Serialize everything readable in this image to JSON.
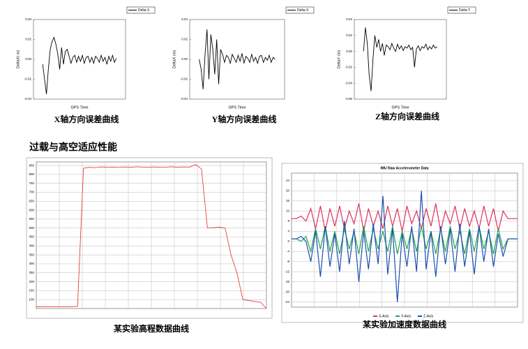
{
  "heading": "过载与高空适应性能",
  "chart_data": [
    {
      "type": "line",
      "caption": "X轴方向误差曲线",
      "x_label": "GPS Time",
      "y_label": "DeltaX( m)",
      "legend_loc": "upper right",
      "grid": false,
      "ylim": [
        -0.04,
        0.04
      ],
      "yticks": [
        -0.04,
        -0.02,
        {
          "value": 0,
          "label": "0.00"
        },
        0.02,
        0.04
      ],
      "series": [
        {
          "name": "Delta X",
          "color": "#000000",
          "values": [
            -0.005,
            -0.02,
            -0.035,
            -0.01,
            0.01,
            0.018,
            0.022,
            0.015,
            0.005,
            -0.01,
            0.012,
            -0.005,
            0.008,
            0.01,
            0.003,
            -0.004,
            0.002,
            0.004,
            -0.003,
            0.003,
            -0.002,
            0.004,
            -0.004,
            0.002,
            0.003,
            -0.003,
            0.002,
            -0.004,
            0.003,
            0.001,
            -0.003,
            0.004,
            -0.002,
            0.002,
            -0.005,
            0.003,
            -0.002,
            0.004,
            -0.003,
            0.001
          ]
        }
      ]
    },
    {
      "type": "line",
      "caption": "Y轴方向误差曲线",
      "x_label": "GPS Time",
      "y_label": "DeltaX (m)",
      "legend_loc": "upper right",
      "grid": false,
      "ylim": [
        -0.04,
        0.04
      ],
      "yticks": [
        -0.04,
        -0.02,
        {
          "value": 0,
          "label": "0.00"
        },
        0.02,
        0.04
      ],
      "series": [
        {
          "name": "Delta X",
          "color": "#000000",
          "values": [
            0.0,
            -0.01,
            -0.03,
            0.005,
            0.03,
            -0.02,
            0.025,
            0.01,
            -0.015,
            0.02,
            -0.025,
            0.01,
            0.005,
            -0.003,
            0.004,
            0.002,
            -0.004,
            0.005,
            0.001,
            -0.003,
            0.004,
            -0.002,
            0.006,
            -0.004,
            0.003,
            0.001,
            -0.003,
            0.005,
            -0.002,
            0.002,
            -0.004,
            0.003,
            0.004,
            -0.003,
            0.002,
            -0.001,
            0.004,
            -0.003,
            0.002,
            0.0
          ]
        }
      ]
    },
    {
      "type": "line",
      "caption": "Z轴方向误差曲线",
      "x_label": "GPS Time",
      "y_label": "DeltaY (m)",
      "legend_loc": "upper right",
      "grid": false,
      "ylim": [
        -0.06,
        0.04
      ],
      "yticks": [
        -0.06,
        -0.04,
        -0.02,
        {
          "value": 0,
          "label": "0.00"
        },
        0.02,
        0.04
      ],
      "series": [
        {
          "name": "Delta Y",
          "color": "#000000",
          "values": [
            0.0,
            0.03,
            0.01,
            -0.03,
            -0.05,
            -0.01,
            0.02,
            0.005,
            0.015,
            0.0,
            0.01,
            -0.005,
            0.008,
            0.006,
            0.002,
            0.01,
            0.004,
            0.0,
            0.009,
            0.003,
            0.007,
            0.001,
            0.006,
            0.004,
            0.008,
            0.002,
            0.005,
            -0.02,
            0.003,
            0.007,
            0.001,
            0.006,
            0.004,
            0.009,
            0.002,
            0.006,
            0.003,
            0.008,
            0.004,
            0.006
          ]
        }
      ]
    },
    {
      "type": "line",
      "caption": "某实验高程数据曲线",
      "legend_loc": "none",
      "grid": true,
      "ylim": [
        50,
        870
      ],
      "yticks": [
        100,
        150,
        200,
        250,
        300,
        350,
        400,
        450,
        500,
        550,
        600,
        650,
        700,
        750,
        800,
        850
      ],
      "series": [
        {
          "name": null,
          "color": "#e8403a",
          "values": [
            60,
            60,
            60,
            60,
            60,
            60,
            60,
            62,
            835,
            840,
            838,
            842,
            840,
            841,
            839,
            842,
            840,
            843,
            841,
            840,
            842,
            840,
            841,
            843,
            840,
            842,
            841,
            855,
            830,
            500,
            502,
            505,
            500,
            350,
            250,
            100,
            95,
            90,
            85,
            50
          ]
        }
      ]
    },
    {
      "type": "line",
      "caption": "某实验加速度数据曲线",
      "title": "IMU Raw Accelerometer Data",
      "legend_loc": "lower center",
      "grid": true,
      "ylim": [
        -26,
        27
      ],
      "yticks": [
        -24,
        -20,
        -16,
        -12,
        -8,
        -4,
        0,
        4,
        8,
        12,
        16,
        20,
        24
      ],
      "series": [
        {
          "name": "X-Axis",
          "color": "#e0305f",
          "values": [
            9,
            9,
            10,
            8,
            13,
            5,
            14,
            4,
            13,
            6,
            14,
            5,
            12,
            7,
            15,
            4,
            13,
            6,
            12,
            5,
            14,
            6,
            13,
            4,
            14,
            7,
            12,
            5,
            13,
            6,
            15,
            4,
            12,
            7,
            14,
            5,
            13,
            6,
            12,
            5,
            14,
            6,
            13,
            4,
            12,
            9,
            9,
            9
          ]
        },
        {
          "name": "Y-Axis",
          "color": "#1aa84a",
          "values": [
            1,
            1,
            0,
            2,
            -4,
            5,
            -3,
            6,
            -4,
            4,
            -5,
            5,
            -3,
            4,
            -5,
            6,
            -4,
            5,
            -3,
            4,
            -4,
            6,
            -5,
            4,
            -3,
            5,
            -4,
            6,
            -3,
            4,
            -5,
            5,
            -4,
            6,
            -3,
            4,
            -5,
            5,
            -4,
            6,
            -3,
            4,
            -5,
            5,
            -3,
            1,
            1,
            1
          ]
        },
        {
          "name": "Z-Axis",
          "color": "#1c4fb0",
          "values": [
            1,
            1,
            2,
            0,
            -8,
            4,
            -14,
            6,
            -10,
            3,
            -12,
            8,
            -9,
            5,
            -16,
            4,
            -11,
            7,
            -9,
            18,
            -13,
            5,
            -24,
            3,
            -10,
            6,
            -12,
            20,
            -11,
            4,
            -14,
            6,
            -9,
            5,
            -12,
            7,
            -10,
            4,
            -13,
            6,
            -8,
            5,
            -10,
            3,
            -6,
            1,
            1,
            1
          ]
        }
      ]
    }
  ]
}
